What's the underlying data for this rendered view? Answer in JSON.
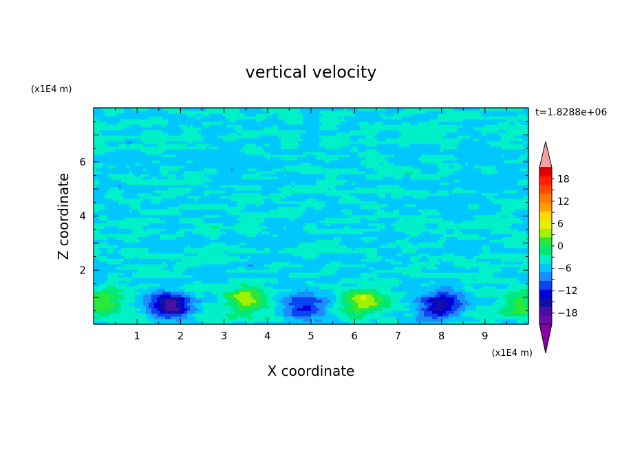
{
  "chart_data": {
    "type": "heatmap",
    "title": "vertical velocity",
    "xlabel": "X coordinate",
    "ylabel": "Z coordinate",
    "x_unit": "(x1E4 m)",
    "y_unit": "(x1E4 m)",
    "time_label": "t=1.8288e+06",
    "xlim": [
      0,
      10
    ],
    "ylim": [
      0,
      8
    ],
    "x_ticks": [
      1,
      2,
      3,
      4,
      5,
      6,
      7,
      8,
      9
    ],
    "y_ticks": [
      2,
      4,
      6
    ],
    "grid": false,
    "colorbar": {
      "position": "right",
      "min": -21,
      "max": 21,
      "step": 3,
      "tick_values": [
        18,
        12,
        6,
        0,
        -6,
        -12,
        -18
      ],
      "tick_labels": [
        "18",
        "12",
        "6",
        "0",
        "−6",
        "−12",
        "−18"
      ],
      "colors": [
        "#6a0dad",
        "#4b0fa0",
        "#1010a8",
        "#0000dc",
        "#0a46f0",
        "#1e8cff",
        "#00c8ff",
        "#00f0c8",
        "#00e878",
        "#2ae83a",
        "#a0f000",
        "#e6f000",
        "#ffd800",
        "#ffa000",
        "#ff7a00",
        "#ff4a00",
        "#ff2000",
        "#e00000"
      ],
      "over_color": "#f4a0a0",
      "under_color": "#8a00a8"
    },
    "features": [
      {
        "kind": "updraft",
        "x": 0.2,
        "z": 0.75,
        "peak": 9
      },
      {
        "kind": "downdraft",
        "x": 1.75,
        "z": 0.7,
        "peak": -16
      },
      {
        "kind": "updraft",
        "x": 3.45,
        "z": 0.9,
        "peak": 10
      },
      {
        "kind": "downdraft",
        "x": 4.9,
        "z": 0.65,
        "peak": -10
      },
      {
        "kind": "updraft",
        "x": 6.2,
        "z": 0.85,
        "peak": 11
      },
      {
        "kind": "downdraft",
        "x": 8.0,
        "z": 0.75,
        "peak": -14
      },
      {
        "kind": "updraft",
        "x": 9.85,
        "z": 0.8,
        "peak": 8
      }
    ]
  }
}
